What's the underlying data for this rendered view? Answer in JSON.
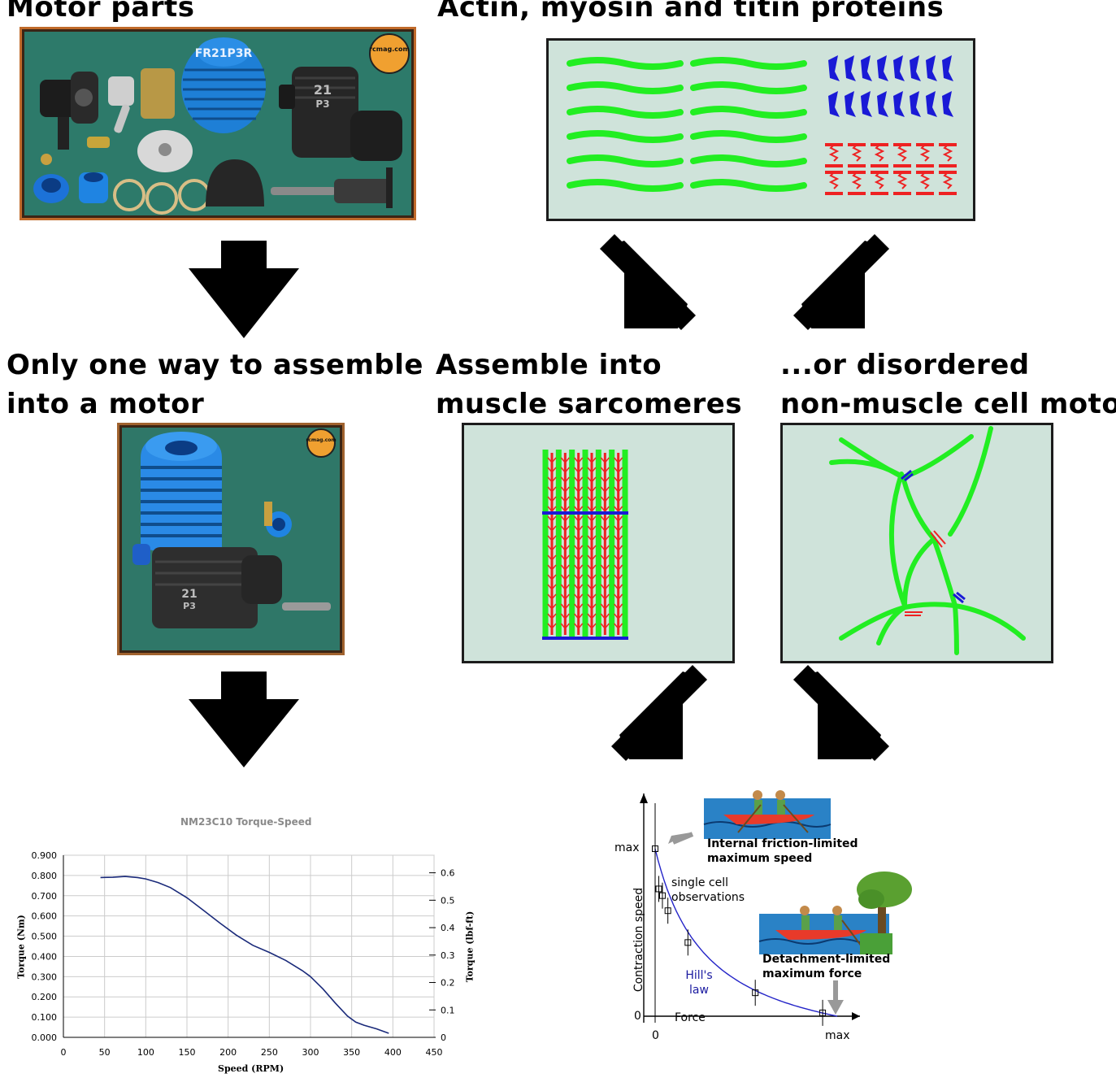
{
  "headings": {
    "motor_parts": "Motor parts",
    "assembly": "Actin, myosin and titin proteins",
    "assembled_motor_line1": "Only one way to assemble",
    "assembled_motor_line2": "into a motor",
    "muscle_line1": "Assemble into",
    "muscle_line2": "muscle sarcomeres",
    "other_line1": "...or disordered",
    "other_line2": "non-muscle cell motors"
  },
  "photos": {
    "parts_logo": "rcmag.com",
    "engine_logo": "rcmag.com",
    "head_label": "FR21P3R",
    "block_label_1": "21",
    "block_label_2": "P3"
  },
  "torque_chart": {
    "chart_data": {
      "type": "line",
      "title": "NM23C10 Torque-Speed",
      "xlabel": "Speed (RPM)",
      "ylabel": "Torque (Nm)",
      "y2label": "Torque (lbf-ft)",
      "xlim": [
        0,
        450
      ],
      "ylim": [
        0,
        0.9
      ],
      "y2lim": [
        0,
        0.664
      ],
      "x_ticks": [
        "0",
        "50",
        "100",
        "150",
        "200",
        "250",
        "300",
        "350",
        "400",
        "450"
      ],
      "y_ticks": [
        "0.000",
        "0.100",
        "0.200",
        "0.300",
        "0.400",
        "0.500",
        "0.600",
        "0.700",
        "0.800",
        "0.900"
      ],
      "y2_ticks": [
        "0",
        "0.1",
        "0.2",
        "0.3",
        "0.4",
        "0.5",
        "0.6"
      ],
      "series": [
        {
          "x": [
            45,
            60,
            75,
            90,
            100,
            115,
            130,
            150,
            170,
            190,
            210,
            230,
            250,
            270,
            290,
            300,
            315,
            330,
            345,
            355,
            365,
            380,
            395
          ],
          "y": [
            0.79,
            0.791,
            0.795,
            0.79,
            0.783,
            0.765,
            0.74,
            0.69,
            0.628,
            0.565,
            0.505,
            0.455,
            0.42,
            0.38,
            0.33,
            0.3,
            0.24,
            0.17,
            0.105,
            0.075,
            0.06,
            0.042,
            0.02
          ],
          "color": "#1a2a7a"
        }
      ]
    }
  },
  "hill_chart": {
    "chart_data": {
      "type": "scatter",
      "xlabel": "Force",
      "ylabel": "Contraction speed",
      "x_ticks": [
        "0",
        "max"
      ],
      "y_ticks": [
        "0",
        "max"
      ],
      "annotations": {
        "top": "Internal friction-limited maximum speed",
        "top_line1": "Internal friction-limited",
        "top_line2": "maximum speed",
        "single": "single cell observations",
        "single_line1": "single cell",
        "single_line2": "observations",
        "hill": "Hill's law",
        "hill_line1": "Hill's",
        "hill_line2": "law",
        "bottom_line1": "Detachment-limited",
        "bottom_line2": "maximum force"
      },
      "points": [
        {
          "x": 0.0,
          "y": 1.0
        },
        {
          "x": 0.02,
          "y": 0.76
        },
        {
          "x": 0.04,
          "y": 0.72
        },
        {
          "x": 0.07,
          "y": 0.63
        },
        {
          "x": 0.18,
          "y": 0.44
        },
        {
          "x": 0.55,
          "y": 0.14
        },
        {
          "x": 0.92,
          "y": 0.02
        }
      ],
      "curve_color": "#2424c8"
    }
  },
  "colors": {
    "actin": "#22ee22",
    "myosin": "#ee2222",
    "titin": "#1a1ad6",
    "panel_bg": "#cfe3da"
  }
}
